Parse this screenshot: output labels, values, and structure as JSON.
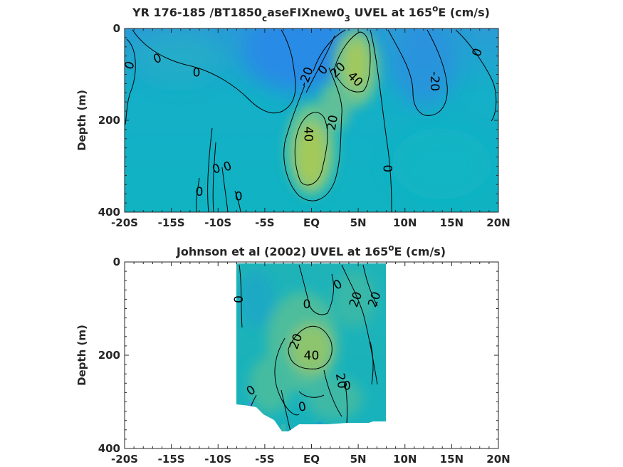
{
  "chart_data": [
    {
      "type": "heatmap",
      "title_parts": [
        "YR 176-185 /BT1850",
        "c",
        "aseFIXnew0",
        "3",
        " UVEL at 165",
        "o",
        "E (cm/s)"
      ],
      "ylabel": "Depth (m)",
      "xlim": [
        -20,
        20
      ],
      "ylim": [
        0,
        400
      ],
      "y_reversed": true,
      "xticks": [
        -20,
        -15,
        -10,
        -5,
        0,
        5,
        10,
        15,
        20
      ],
      "xtick_labels": [
        "-20S",
        "-15S",
        "-10S",
        "-5S",
        "EQ",
        "5N",
        "10N",
        "15N",
        "20N"
      ],
      "yticks": [
        0,
        200,
        400
      ],
      "ytick_labels": [
        "0",
        "200",
        "400"
      ],
      "contour_levels": [
        -20,
        0,
        20,
        40
      ],
      "contour_labels": [
        {
          "text": "0",
          "lon": -19.5,
          "depth": 80,
          "rot": -70
        },
        {
          "text": "0",
          "lon": -16.5,
          "depth": 65,
          "rot": -20
        },
        {
          "text": "0",
          "lon": -12.3,
          "depth": 95,
          "rot": 0
        },
        {
          "text": "0",
          "lon": -10.2,
          "depth": 305,
          "rot": -20
        },
        {
          "text": "0",
          "lon": -9.0,
          "depth": 300,
          "rot": -20
        },
        {
          "text": "0",
          "lon": -12.0,
          "depth": 355,
          "rot": 0
        },
        {
          "text": "0",
          "lon": -7.8,
          "depth": 365,
          "rot": 0
        },
        {
          "text": "-20",
          "lon": -0.6,
          "depth": 105,
          "rot": -70
        },
        {
          "text": "0",
          "lon": 1.2,
          "depth": 90,
          "rot": -50
        },
        {
          "text": "20",
          "lon": 2.8,
          "depth": 90,
          "rot": -45
        },
        {
          "text": "40",
          "lon": 4.7,
          "depth": 110,
          "rot": 45
        },
        {
          "text": "20",
          "lon": 2.2,
          "depth": 205,
          "rot": -80
        },
        {
          "text": "40",
          "lon": -0.3,
          "depth": 230,
          "rot": 90
        },
        {
          "text": "0",
          "lon": 8.2,
          "depth": 305,
          "rot": -90
        },
        {
          "text": "-20",
          "lon": 13.2,
          "depth": 115,
          "rot": 90
        },
        {
          "text": "0",
          "lon": 17.7,
          "depth": 52,
          "rot": -70
        }
      ],
      "max_value_cm_s": 45,
      "max_location": {
        "lon": 0,
        "depth": 240
      }
    },
    {
      "type": "heatmap",
      "title_parts": [
        "Johnson et al (2002) UVEL at 165",
        "o",
        "E (cm/s)"
      ],
      "ylabel": "Depth (m)",
      "xlim": [
        -20,
        20
      ],
      "ylim": [
        0,
        400
      ],
      "y_reversed": true,
      "data_lon_range": [
        -8,
        8
      ],
      "xticks": [
        -20,
        -15,
        -10,
        -5,
        0,
        5,
        10,
        15,
        20
      ],
      "xtick_labels": [
        "-20S",
        "-15S",
        "-10S",
        "-5S",
        "EQ",
        "5N",
        "10N",
        "15N",
        "20N"
      ],
      "yticks": [
        0,
        200,
        400
      ],
      "ytick_labels": [
        "0",
        "200",
        "400"
      ],
      "contour_levels": [
        0,
        20,
        40
      ],
      "contour_labels": [
        {
          "text": "0",
          "lon": -7.8,
          "depth": 80,
          "rot": -90
        },
        {
          "text": "0",
          "lon": -0.5,
          "depth": 90,
          "rot": 0
        },
        {
          "text": "0",
          "lon": 2.8,
          "depth": 48,
          "rot": -30
        },
        {
          "text": "20",
          "lon": 4.7,
          "depth": 80,
          "rot": -70
        },
        {
          "text": "20",
          "lon": 6.7,
          "depth": 80,
          "rot": -70
        },
        {
          "text": "20",
          "lon": -1.7,
          "depth": 170,
          "rot": -70
        },
        {
          "text": "40",
          "lon": 0,
          "depth": 200,
          "rot": 0
        },
        {
          "text": "20",
          "lon": 3.2,
          "depth": 255,
          "rot": 80
        },
        {
          "text": "0",
          "lon": 3.8,
          "depth": 265,
          "rot": 0
        },
        {
          "text": "0",
          "lon": -6.5,
          "depth": 275,
          "rot": -35
        },
        {
          "text": "0",
          "lon": -1.0,
          "depth": 310,
          "rot": -10
        }
      ],
      "max_value_cm_s": 42,
      "max_location": {
        "lon": 0,
        "depth": 185
      }
    }
  ]
}
